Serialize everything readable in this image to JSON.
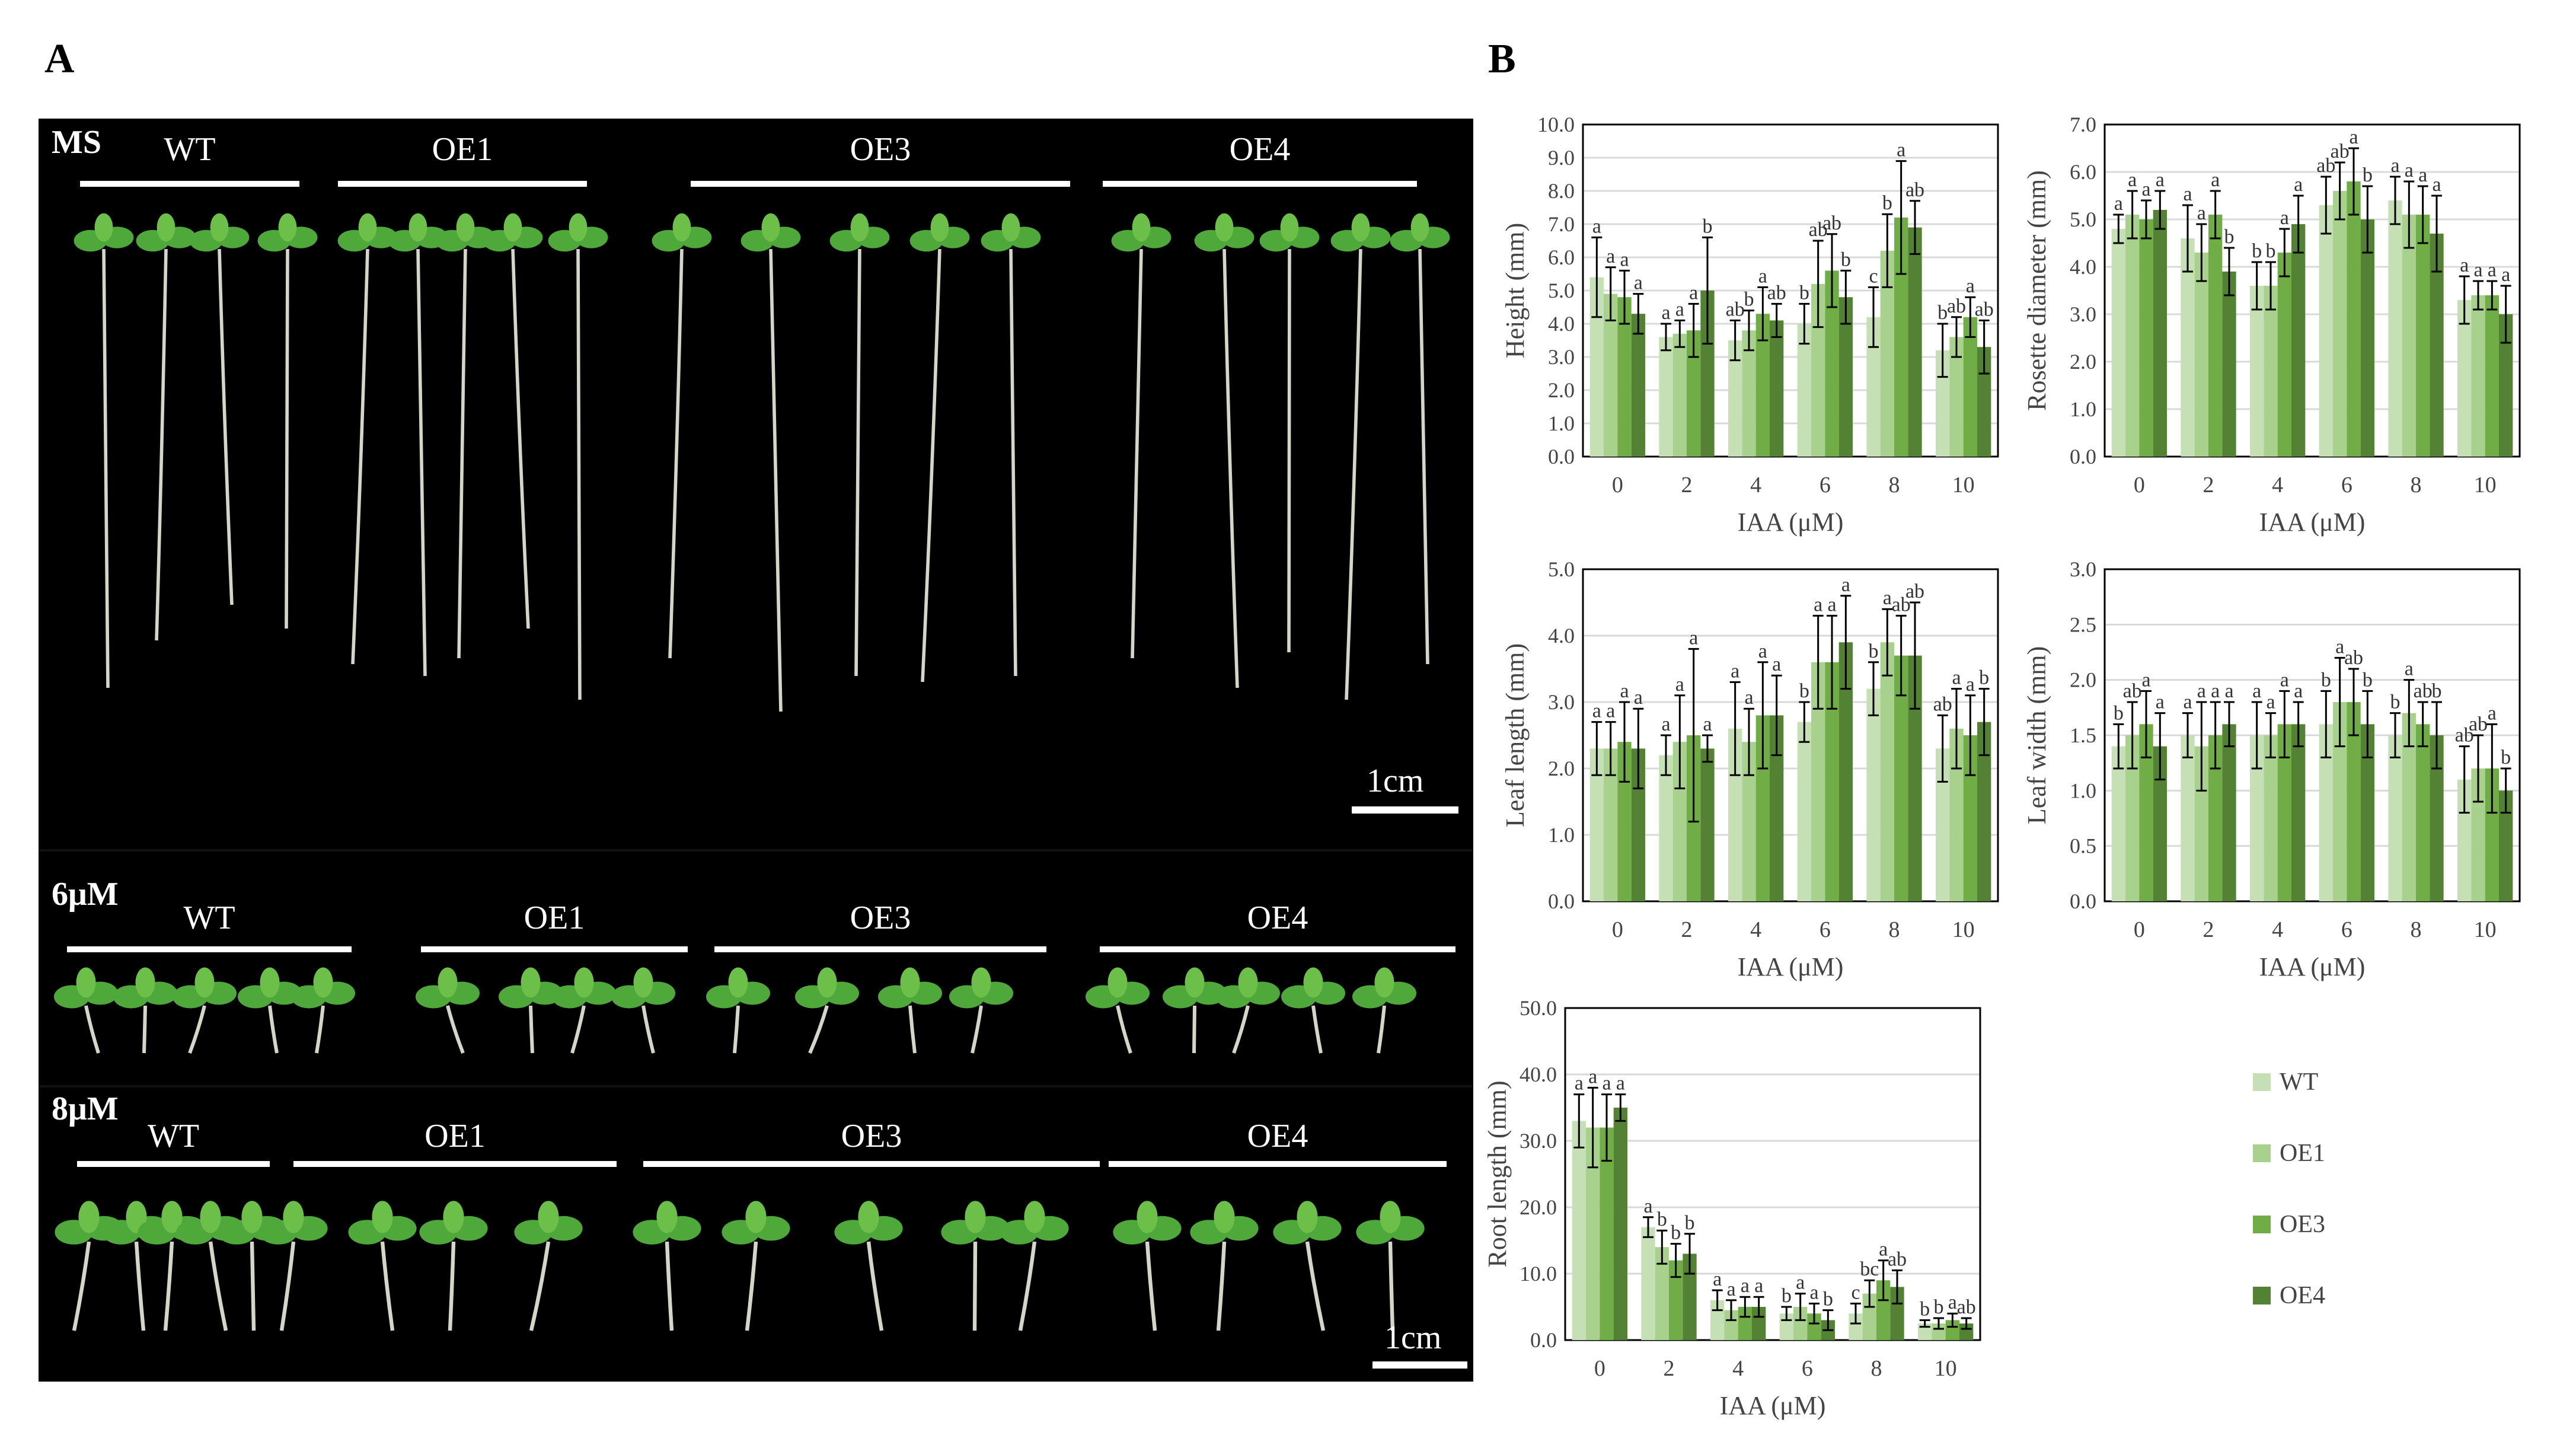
{
  "panels": {
    "a": "A",
    "b": "B"
  },
  "photo": {
    "sections": [
      {
        "condition": "MS",
        "genotypes": [
          "WT",
          "OE1",
          "OE3",
          "OE4"
        ],
        "scale_label": "1cm"
      },
      {
        "condition": "6μM",
        "genotypes": [
          "WT",
          "OE1",
          "OE3",
          "OE4"
        ]
      },
      {
        "condition": "8μM",
        "genotypes": [
          "WT",
          "OE1",
          "OE3",
          "OE4"
        ],
        "scale_label": "1cm"
      }
    ]
  },
  "colors": {
    "WT": "#c5e0b4",
    "OE1": "#a9d18e",
    "OE3": "#70ad47",
    "OE4": "#548235",
    "photo_bg": "#000000",
    "plant": "#4fa83a"
  },
  "legend": [
    "WT",
    "OE1",
    "OE3",
    "OE4"
  ],
  "chart_data": [
    {
      "type": "bar",
      "ylabel": "Height (mm)",
      "xlabel": "IAA (μM)",
      "categories": [
        "0",
        "2",
        "4",
        "6",
        "8",
        "10"
      ],
      "ylim": [
        0,
        10
      ],
      "yticks": [
        "0.0",
        "1.0",
        "2.0",
        "3.0",
        "4.0",
        "5.0",
        "6.0",
        "7.0",
        "8.0",
        "9.0",
        "10.0"
      ],
      "series": [
        {
          "name": "WT",
          "values": [
            5.4,
            3.6,
            3.5,
            4.0,
            4.2,
            3.2
          ],
          "errors": [
            1.2,
            0.4,
            0.6,
            0.6,
            0.9,
            0.8
          ],
          "letters": [
            "a",
            "a",
            "ab",
            "b",
            "c",
            "b"
          ]
        },
        {
          "name": "OE1",
          "values": [
            4.9,
            3.7,
            3.8,
            5.2,
            6.2,
            3.6
          ],
          "errors": [
            0.8,
            0.4,
            0.6,
            1.3,
            1.1,
            0.6
          ],
          "letters": [
            "a",
            "a",
            "b",
            "ab",
            "b",
            "ab"
          ]
        },
        {
          "name": "OE3",
          "values": [
            4.8,
            3.8,
            4.3,
            5.6,
            7.2,
            4.2
          ],
          "errors": [
            0.8,
            0.8,
            0.8,
            1.1,
            1.7,
            0.6
          ],
          "letters": [
            "a",
            "a",
            "a",
            "ab",
            "a",
            "a"
          ]
        },
        {
          "name": "OE4",
          "values": [
            4.3,
            5.0,
            4.1,
            4.8,
            6.9,
            3.3
          ],
          "errors": [
            0.6,
            1.6,
            0.5,
            0.8,
            0.8,
            0.8
          ],
          "letters": [
            "a",
            "b",
            "ab",
            "b",
            "ab",
            "ab"
          ]
        }
      ]
    },
    {
      "type": "bar",
      "ylabel": "Rosette diameter (mm)",
      "xlabel": "IAA (μM)",
      "categories": [
        "0",
        "2",
        "4",
        "6",
        "8",
        "10"
      ],
      "ylim": [
        0,
        7
      ],
      "yticks": [
        "0.0",
        "1.0",
        "2.0",
        "3.0",
        "4.0",
        "5.0",
        "6.0",
        "7.0"
      ],
      "series": [
        {
          "name": "WT",
          "values": [
            4.8,
            4.6,
            3.6,
            5.3,
            5.4,
            3.3
          ],
          "errors": [
            0.3,
            0.7,
            0.5,
            0.6,
            0.5,
            0.5
          ],
          "letters": [
            "a",
            "a",
            "b",
            "ab",
            "a",
            "a"
          ]
        },
        {
          "name": "OE1",
          "values": [
            5.1,
            4.3,
            3.6,
            5.6,
            5.1,
            3.4
          ],
          "errors": [
            0.5,
            0.6,
            0.5,
            0.6,
            0.7,
            0.3
          ],
          "letters": [
            "a",
            "a",
            "b",
            "ab",
            "a",
            "a"
          ]
        },
        {
          "name": "OE3",
          "values": [
            5.0,
            5.1,
            4.3,
            5.8,
            5.1,
            3.4
          ],
          "errors": [
            0.4,
            0.5,
            0.5,
            0.7,
            0.6,
            0.3
          ],
          "letters": [
            "a",
            "a",
            "a",
            "a",
            "a",
            "a"
          ]
        },
        {
          "name": "OE4",
          "values": [
            5.2,
            3.9,
            4.9,
            5.0,
            4.7,
            3.0
          ],
          "errors": [
            0.4,
            0.5,
            0.6,
            0.7,
            0.8,
            0.6
          ],
          "letters": [
            "a",
            "b",
            "a",
            "b",
            "a",
            "a"
          ]
        }
      ]
    },
    {
      "type": "bar",
      "ylabel": "Leaf length (mm)",
      "xlabel": "IAA (μM)",
      "categories": [
        "0",
        "2",
        "4",
        "6",
        "8",
        "10"
      ],
      "ylim": [
        0,
        5
      ],
      "yticks": [
        "0.0",
        "1.0",
        "2.0",
        "3.0",
        "4.0",
        "5.0"
      ],
      "series": [
        {
          "name": "WT",
          "values": [
            2.3,
            2.2,
            2.6,
            2.7,
            3.2,
            2.3
          ],
          "errors": [
            0.4,
            0.3,
            0.7,
            0.3,
            0.4,
            0.5
          ],
          "letters": [
            "a",
            "a",
            "a",
            "b",
            "b",
            "ab"
          ]
        },
        {
          "name": "OE1",
          "values": [
            2.3,
            2.4,
            2.4,
            3.6,
            3.9,
            2.6
          ],
          "errors": [
            0.4,
            0.7,
            0.5,
            0.7,
            0.5,
            0.6
          ],
          "letters": [
            "a",
            "a",
            "a",
            "a",
            "a",
            "a"
          ]
        },
        {
          "name": "OE3",
          "values": [
            2.4,
            2.5,
            2.8,
            3.6,
            3.7,
            2.5
          ],
          "errors": [
            0.6,
            1.3,
            0.8,
            0.7,
            0.6,
            0.6
          ],
          "letters": [
            "a",
            "a",
            "a",
            "a",
            "ab",
            "a"
          ]
        },
        {
          "name": "OE4",
          "values": [
            2.3,
            2.3,
            2.8,
            3.9,
            3.7,
            2.7
          ],
          "errors": [
            0.6,
            0.2,
            0.6,
            0.7,
            0.8,
            0.5
          ],
          "letters": [
            "a",
            "a",
            "a",
            "a",
            "ab",
            "b"
          ]
        }
      ]
    },
    {
      "type": "bar",
      "ylabel": "Leaf width (mm)",
      "xlabel": "IAA (μM)",
      "categories": [
        "0",
        "2",
        "4",
        "6",
        "8",
        "10"
      ],
      "ylim": [
        0,
        3
      ],
      "yticks": [
        "0.0",
        "0.5",
        "1.0",
        "1.5",
        "2.0",
        "2.5",
        "3.0"
      ],
      "series": [
        {
          "name": "WT",
          "values": [
            1.4,
            1.5,
            1.5,
            1.6,
            1.5,
            1.1
          ],
          "errors": [
            0.2,
            0.2,
            0.3,
            0.3,
            0.2,
            0.3
          ],
          "letters": [
            "b",
            "a",
            "a",
            "b",
            "b",
            "ab"
          ]
        },
        {
          "name": "OE1",
          "values": [
            1.5,
            1.4,
            1.5,
            1.8,
            1.7,
            1.2
          ],
          "errors": [
            0.3,
            0.4,
            0.2,
            0.4,
            0.3,
            0.3
          ],
          "letters": [
            "ab",
            "a",
            "a",
            "a",
            "a",
            "ab"
          ]
        },
        {
          "name": "OE3",
          "values": [
            1.6,
            1.5,
            1.6,
            1.8,
            1.6,
            1.2
          ],
          "errors": [
            0.3,
            0.3,
            0.3,
            0.3,
            0.2,
            0.4
          ],
          "letters": [
            "a",
            "a",
            "a",
            "ab",
            "ab",
            "a"
          ]
        },
        {
          "name": "OE4",
          "values": [
            1.4,
            1.6,
            1.6,
            1.6,
            1.5,
            1.0
          ],
          "errors": [
            0.3,
            0.2,
            0.2,
            0.3,
            0.3,
            0.2
          ],
          "letters": [
            "a",
            "a",
            "a",
            "b",
            "b",
            "b"
          ]
        }
      ]
    },
    {
      "type": "bar",
      "ylabel": "Root length (mm)",
      "xlabel": "IAA (μM)",
      "categories": [
        "0",
        "2",
        "4",
        "6",
        "8",
        "10"
      ],
      "ylim": [
        0,
        50
      ],
      "yticks": [
        "0.0",
        "10.0",
        "20.0",
        "30.0",
        "40.0",
        "50.0"
      ],
      "series": [
        {
          "name": "WT",
          "values": [
            33,
            17,
            6,
            4,
            4,
            2.5
          ],
          "errors": [
            4,
            1.5,
            1.5,
            1,
            1.5,
            0.5
          ],
          "letters": [
            "a",
            "a",
            "a",
            "b",
            "c",
            "b"
          ]
        },
        {
          "name": "OE1",
          "values": [
            32,
            14,
            4.5,
            5,
            7,
            2.5
          ],
          "errors": [
            6,
            2.5,
            1.5,
            2,
            2,
            0.8
          ],
          "letters": [
            "a",
            "b",
            "a",
            "a",
            "bc",
            "b"
          ]
        },
        {
          "name": "OE3",
          "values": [
            32,
            12,
            5,
            4,
            9,
            3
          ],
          "errors": [
            5,
            2.5,
            1.5,
            1.5,
            3,
            1
          ],
          "letters": [
            "a",
            "b",
            "a",
            "a",
            "a",
            "a"
          ]
        },
        {
          "name": "OE4",
          "values": [
            35,
            13,
            5,
            3,
            8,
            2.5
          ],
          "errors": [
            2,
            3,
            1.5,
            1.5,
            2.5,
            0.8
          ],
          "letters": [
            "a",
            "b",
            "a",
            "b",
            "ab",
            "ab"
          ]
        }
      ]
    }
  ]
}
